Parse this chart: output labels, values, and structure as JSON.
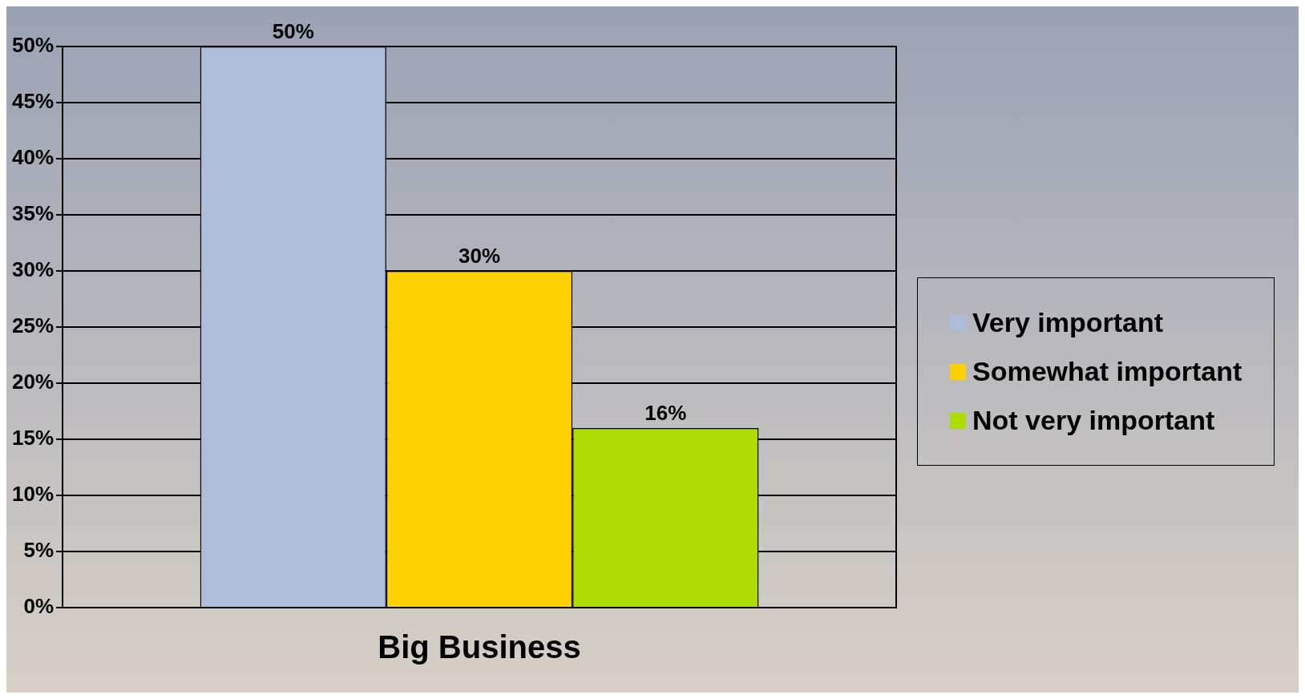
{
  "chart_data": {
    "type": "bar",
    "categories": [
      "Big Business"
    ],
    "series": [
      {
        "name": "Very important",
        "color": "#adbcd9",
        "values": [
          50
        ]
      },
      {
        "name": "Somewhat important",
        "color": "#ffd000",
        "values": [
          30
        ]
      },
      {
        "name": "Not very important",
        "color": "#addd00",
        "values": [
          16
        ]
      }
    ],
    "ylim": [
      0,
      50
    ],
    "yticks": [
      {
        "value": 0,
        "label": "0%"
      },
      {
        "value": 5,
        "label": "5%"
      },
      {
        "value": 10,
        "label": "10%"
      },
      {
        "value": 15,
        "label": "15%"
      },
      {
        "value": 20,
        "label": "20%"
      },
      {
        "value": 25,
        "label": "25%"
      },
      {
        "value": 30,
        "label": "30%"
      },
      {
        "value": 35,
        "label": "35%"
      },
      {
        "value": 40,
        "label": "40%"
      },
      {
        "value": 45,
        "label": "45%"
      },
      {
        "value": 50,
        "label": "50%"
      }
    ],
    "value_labels": [
      "50%",
      "30%",
      "16%"
    ],
    "grid": "y",
    "legend": "right"
  }
}
